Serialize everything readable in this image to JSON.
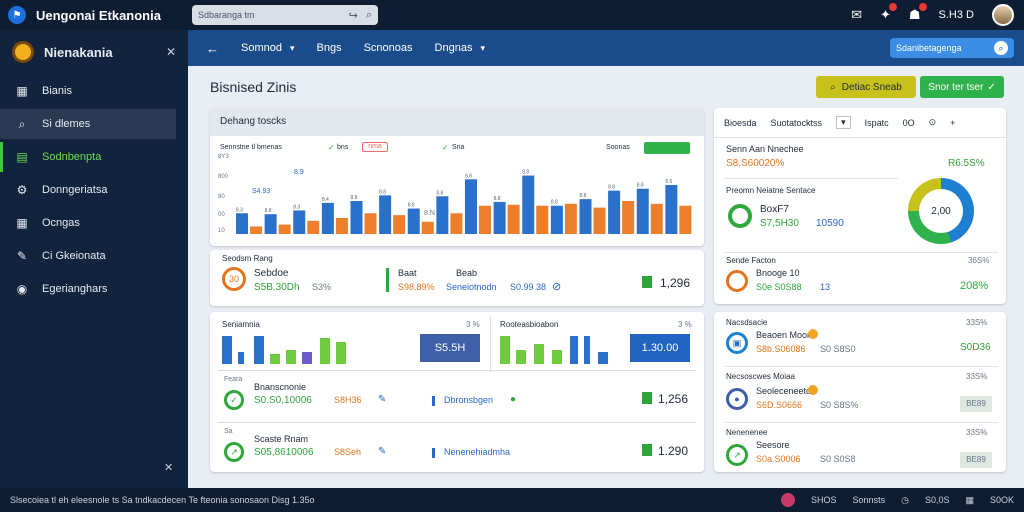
{
  "topbar": {
    "app_title": "Uengonai Etkanonia",
    "search_placeholder": "Sdbaranga tm",
    "user_label": "S.H3 D"
  },
  "sidebar": {
    "brand": "Nienakania",
    "items": [
      {
        "label": "Bianis",
        "icon": "grid-icon"
      },
      {
        "label": "Si dlemes",
        "icon": "search-icon"
      },
      {
        "label": "Sodnbenpta",
        "icon": "chart-icon"
      },
      {
        "label": "Donngeriatsa",
        "icon": "gear-icon"
      },
      {
        "label": "Ocngas",
        "icon": "grid-icon"
      },
      {
        "label": "Ci Gkeionata",
        "icon": "edit-icon"
      },
      {
        "label": "Egerianghars",
        "icon": "globe-icon"
      }
    ]
  },
  "nav": {
    "items": [
      "Somnod",
      "Bngs",
      "Scnonoas",
      "Dngnas"
    ],
    "search_placeholder": "Sdanibetagenga"
  },
  "page": {
    "title": "Bisnised Zinis",
    "btn_yellow": "Detiac Sneab",
    "btn_green": "Snor ter tser"
  },
  "chart_card": {
    "title": "Dehang toscks",
    "legend_label": "Sennstne tl bmenas",
    "legend_a": "bns",
    "legend_b": "nma",
    "legend_c": "Sna",
    "legend_right": "Soonas",
    "ann_1": "S4.93",
    "ann_2": "8.9",
    "ann_3": "8.N",
    "y_ticks": [
      "8Y3",
      "800",
      "80",
      "00",
      "10"
    ]
  },
  "chart_data": {
    "type": "bar",
    "series": [
      {
        "name": "bns",
        "color": "#2a71cc",
        "values": [
          22,
          21,
          25,
          33,
          35,
          41,
          27,
          40,
          58,
          34,
          62,
          30,
          37,
          46,
          48,
          52
        ]
      },
      {
        "name": "nma",
        "color": "#ed7e2b",
        "values": [
          8,
          10,
          14,
          17,
          22,
          20,
          13,
          22,
          30,
          31,
          30,
          32,
          28,
          35,
          32,
          30
        ]
      }
    ],
    "bar_labels": [
      "8.3",
      "8.8",
      "8.3",
      "8.4",
      "8.8",
      "8.8",
      "8.8",
      "8.8",
      "8.8",
      "8.8",
      "8.8",
      "8.8",
      "8.8",
      "8.8",
      "8.8",
      "8.6"
    ],
    "ylim": [
      0,
      70
    ]
  },
  "sum_row": {
    "label": "Seodsm Rang",
    "name": "Sebdoe",
    "ring_label": "30",
    "value_green": "S5B.30Dh",
    "value_muted": "S3%",
    "mid_label_a": "Baat",
    "mid_label_b": "Beab",
    "mid_val_a": "S98.89%",
    "mid_val_b": "Seneiotnodn",
    "mid_val_c": "S0.99 38",
    "right_val": "1,296"
  },
  "panel_a": {
    "title": "Seniamnia",
    "pct": "3 %",
    "val_box": "S5.5H",
    "rows": [
      {
        "cap": "Feara",
        "name": "Bnanscnonie",
        "value": "S0.S0,10006",
        "muted": "S8H36",
        "right": "1,256"
      },
      {
        "cap": "Sa",
        "name": "Scaste Rnam",
        "value": "S05,8610006",
        "muted": "S8Seh",
        "right": "1.290"
      }
    ]
  },
  "panel_b": {
    "title": "Rooteasbioabon",
    "pct": "3 %",
    "val_box": "1.30.00",
    "rows": [
      {
        "name": "Dbronsbgen"
      },
      {
        "name": "Nenenehiadmha"
      }
    ]
  },
  "right_card": {
    "tabs": [
      "Bioesda",
      "Suotatocktss",
      "Ispatc",
      "0O"
    ],
    "head_label": "Senn Aan Nnechee",
    "head_value": "S8,S60020%",
    "head_pct": "R6.5S%",
    "pie_label": "Preomn Neiatne Sentace",
    "pie_name": "BoxF7",
    "pie_val_a": "S7,5H30",
    "pie_val_b": "10590",
    "pie_center": "2,00",
    "row_label": "Sende Facton",
    "row_name": "Bnooge 10",
    "row_value": "S0e S0S88",
    "row_muted": "13",
    "row_pct_top": "36S%",
    "row_pct": "208%"
  },
  "right_panels": [
    {
      "label": "Nacsdsacie",
      "name": "Beaoen Moon",
      "value": "S8b.S06086",
      "muted": "S0 S8S0",
      "pct_top": "33S%",
      "right": "S0D36"
    },
    {
      "label": "Necsoscwes Moiaa",
      "name": "Seoleceneeton",
      "value": "S6D.S0666",
      "muted": "S0 S8S%",
      "pct_top": "33S%",
      "right": "BE89"
    },
    {
      "label": "Nenenenee",
      "name": "Seesore",
      "value": "S0a.S0006",
      "muted": "S0 S0S8",
      "pct_top": "33S%",
      "right": "BE89"
    }
  ],
  "footer": {
    "left_text": "Slsecoiea tl eh eleesnole ts Sa tndkacdecen Te fteonia sonosaon Disg 1.35o",
    "r1": "SHOS",
    "r2": "Sonnsts",
    "r3": "S0,0S",
    "r4": "S0OK"
  }
}
